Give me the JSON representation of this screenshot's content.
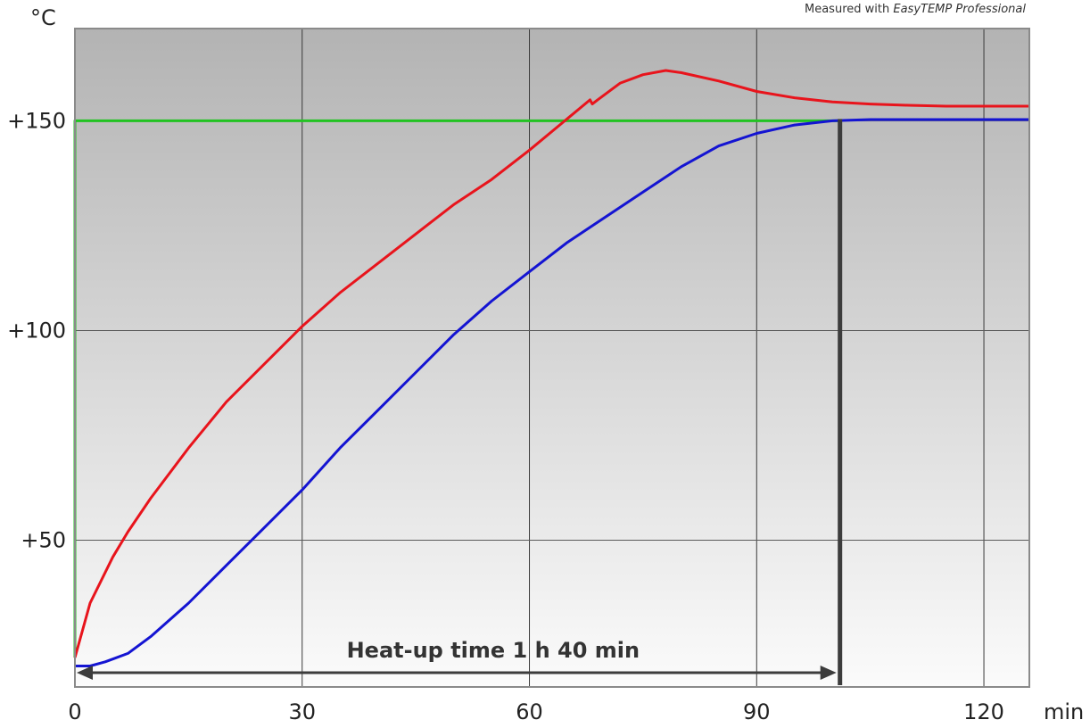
{
  "chart_data": {
    "type": "line",
    "title": "",
    "xlabel": "",
    "ylabel": "",
    "x_unit": "min",
    "y_unit": "°C",
    "xlim": [
      0,
      126
    ],
    "ylim": [
      15,
      172
    ],
    "x_ticks": [
      0,
      30,
      60,
      90,
      120
    ],
    "x_tick_labels": [
      "0",
      "30",
      "60",
      "90",
      "120"
    ],
    "y_ticks": [
      50,
      100,
      150
    ],
    "y_tick_labels": [
      "+50",
      "+100",
      "+150"
    ],
    "grid": true,
    "legend": "none",
    "note_prefix": "Measured with ",
    "note_italic": "EasyTEMP Professional",
    "series": [
      {
        "color": "#22c322",
        "x": [
          0,
          0,
          101
        ],
        "y": [
          22,
          150,
          150
        ]
      },
      {
        "color": "#e8141c",
        "x": [
          0,
          2,
          5,
          7,
          10,
          15,
          20,
          25,
          30,
          35,
          40,
          45,
          50,
          55,
          60,
          64,
          68,
          68.3,
          69,
          72,
          75,
          78,
          80,
          85,
          90,
          95,
          100,
          105,
          110,
          115,
          120,
          126
        ],
        "y": [
          22,
          35,
          46,
          52,
          60,
          72,
          83,
          92,
          101,
          109,
          116,
          123,
          130,
          136,
          143,
          149,
          155,
          154,
          155,
          159,
          161,
          162,
          161.5,
          159.5,
          157,
          155.5,
          154.5,
          154,
          153.7,
          153.5,
          153.5,
          153.5
        ]
      },
      {
        "color": "#1414d2",
        "x": [
          0,
          2,
          4,
          7,
          10,
          15,
          20,
          25,
          30,
          35,
          40,
          45,
          50,
          55,
          60,
          65,
          70,
          75,
          80,
          85,
          90,
          95,
          100,
          105,
          110,
          115,
          120,
          126
        ],
        "y": [
          20,
          20,
          21,
          23,
          27,
          35,
          44,
          53,
          62,
          72,
          81,
          90,
          99,
          107,
          114,
          121,
          127,
          133,
          139,
          144,
          147,
          149,
          150,
          150.3,
          150.3,
          150.3,
          150.3,
          150.3
        ]
      }
    ],
    "annotations": [
      {
        "text": "Heat-up time 1 h 40 min",
        "from_x": 0,
        "to_x": 101
      }
    ]
  }
}
